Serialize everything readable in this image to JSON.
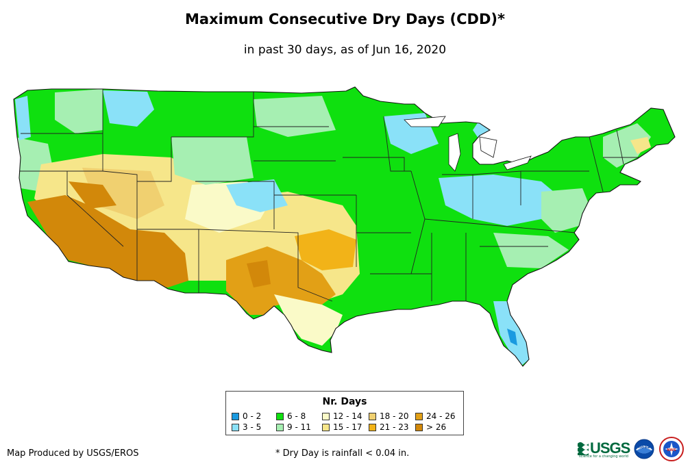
{
  "title": "Maximum Consecutive Dry Days (CDD)*",
  "subtitle": "in past 30 days, as of Jun 16, 2020",
  "legend": {
    "title": "Nr. Days",
    "items": [
      {
        "label": "0 - 2",
        "color": "#1a9ae0"
      },
      {
        "label": "3 - 5",
        "color": "#8ae1f8"
      },
      {
        "label": "6 - 8",
        "color": "#0fe00f"
      },
      {
        "label": "9 - 11",
        "color": "#a6efb2"
      },
      {
        "label": "12 - 14",
        "color": "#fafac8"
      },
      {
        "label": "15 - 17",
        "color": "#f6e68a"
      },
      {
        "label": "18 - 20",
        "color": "#f0d070"
      },
      {
        "label": "21 - 23",
        "color": "#f2b318"
      },
      {
        "label": "24 - 26",
        "color": "#e2a016"
      },
      {
        "label": "> 26",
        "color": "#d2880a"
      }
    ]
  },
  "credit": "Map Produced by USGS/EROS",
  "footnote": "* Dry Day is rainfall < 0.04 in.",
  "logos": {
    "usgs": "USGS",
    "usgs_tagline": "science for a changing world",
    "noaa": "noaa",
    "nws": "NWS"
  }
}
